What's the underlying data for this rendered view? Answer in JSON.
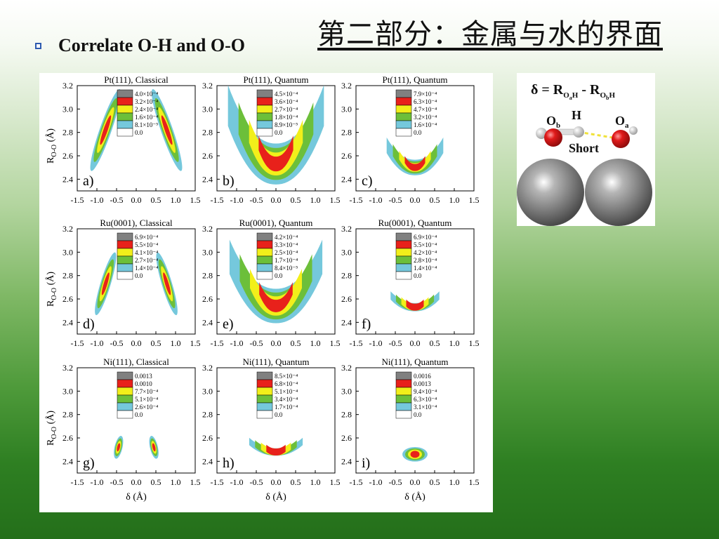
{
  "slide": {
    "title": "第二部分：金属与水的界面",
    "bullet": "Correlate O-H and O-O"
  },
  "colors": {
    "bullet": "#2e5bb0",
    "level5": "#808080",
    "level4": "#e8211b",
    "level3": "#f2ef1a",
    "level2": "#6cbf3a",
    "level1": "#75c8dc",
    "level0": "#ffffff"
  },
  "axes": {
    "x_label": "δ (Å)",
    "y_label": "R",
    "y_label_sub": "O-O",
    "y_label_unit": " (Å)",
    "x_ticks": [
      "-1.5",
      "-1.0",
      "-0.5",
      "0.0",
      "0.5",
      "1.0",
      "1.5"
    ],
    "y_ticks": [
      "3.2",
      "3.0",
      "2.8",
      "2.6",
      "2.4"
    ],
    "x_range": [
      -1.5,
      1.5
    ],
    "y_range": [
      2.3,
      3.2
    ]
  },
  "panels": [
    {
      "letter": "a)",
      "title": "Pt(111), Classical",
      "legend": [
        "4.0×10⁻⁴",
        "3.2×10⁻⁴",
        "2.4×10⁻⁴",
        "1.6×10⁻⁴",
        "8.1×10⁻⁵",
        "0.0"
      ],
      "shape": "split",
      "center": [
        0.78,
        2.82
      ],
      "size": [
        0.15,
        0.37
      ],
      "tilt": 1.6,
      "sag": 0
    },
    {
      "letter": "b)",
      "title": "Pt(111), Quantum",
      "legend": [
        "4.5×10⁻⁴",
        "3.6×10⁻⁴",
        "2.7×10⁻⁴",
        "1.8×10⁻⁴",
        "8.9×10⁻⁵",
        "0.0"
      ],
      "shape": "arc",
      "center": [
        0.0,
        2.53
      ],
      "size": [
        1.22,
        0.5
      ],
      "tilt": 0,
      "sag": 0
    },
    {
      "letter": "c)",
      "title": "Pt(111), Quantum",
      "legend": [
        "7.9×10⁻⁴",
        "6.3×10⁻⁴",
        "4.7×10⁻⁴",
        "3.2×10⁻⁴",
        "1.6×10⁻⁴",
        "0.0"
      ],
      "shape": "arc",
      "center": [
        0.0,
        2.5
      ],
      "size": [
        0.72,
        0.19
      ],
      "tilt": 0,
      "sag": 0
    },
    {
      "letter": "d)",
      "title": "Ru(0001), Classical",
      "legend": [
        "6.9×10⁻⁴",
        "5.5×10⁻⁴",
        "4.1×10⁻⁴",
        "2.7×10⁻⁴",
        "1.4×10⁻⁴",
        "0.0"
      ],
      "shape": "split",
      "center": [
        0.78,
        2.73
      ],
      "size": [
        0.13,
        0.28
      ],
      "tilt": 1.4,
      "sag": 0
    },
    {
      "letter": "e)",
      "title": "Ru(0001), Quantum",
      "legend": [
        "4.2×10⁻⁴",
        "3.3×10⁻⁴",
        "2.5×10⁻⁴",
        "1.7×10⁻⁴",
        "8.4×10⁻⁵",
        "0.0"
      ],
      "shape": "arc",
      "center": [
        0.0,
        2.54
      ],
      "size": [
        1.18,
        0.42
      ],
      "tilt": 0,
      "sag": 0
    },
    {
      "letter": "f)",
      "title": "Ru(0001), Quantum",
      "legend": [
        "6.9×10⁻⁴",
        "5.5×10⁻⁴",
        "4.2×10⁻⁴",
        "2.8×10⁻⁴",
        "1.4×10⁻⁴",
        "0.0"
      ],
      "shape": "arc",
      "center": [
        0.0,
        2.53
      ],
      "size": [
        0.62,
        0.1
      ],
      "tilt": 0,
      "sag": 0
    },
    {
      "letter": "g)",
      "title": "Ni(111), Classical",
      "legend": [
        "0.0013",
        "0.0010",
        "7.7×10⁻⁴",
        "5.1×10⁻⁴",
        "2.6×10⁻⁴",
        "0.0"
      ],
      "shape": "split",
      "center": [
        0.45,
        2.52
      ],
      "size": [
        0.1,
        0.1
      ],
      "tilt": 1.1,
      "sag": 0
    },
    {
      "letter": "h)",
      "title": "Ni(111), Quantum",
      "legend": [
        "8.5×10⁻⁴",
        "6.8×10⁻⁴",
        "5.1×10⁻⁴",
        "3.4×10⁻⁴",
        "1.7×10⁻⁴",
        "0.0"
      ],
      "shape": "arc",
      "center": [
        0.0,
        2.48
      ],
      "size": [
        0.68,
        0.09
      ],
      "tilt": 0,
      "sag": 0
    },
    {
      "letter": "i)",
      "title": "Ni(111), Quantum",
      "legend": [
        "0.0016",
        "0.0013",
        "9.4×10⁻⁴",
        "6.3×10⁻⁴",
        "3.1×10⁻⁴",
        "0.0"
      ],
      "shape": "blob",
      "center": [
        0.0,
        2.46
      ],
      "size": [
        0.32,
        0.05
      ],
      "tilt": 0,
      "sag": 0
    }
  ],
  "inset": {
    "formula": "δ = R",
    "formula_sub1": "O",
    "formula_subsub1": "a",
    "formula_h1": "H",
    "formula_sep": " - R",
    "formula_sub2": "O",
    "formula_subsub2": "b",
    "formula_h2": "H",
    "atom_ob": "O",
    "atom_ob_sub": "b",
    "atom_h": "H",
    "atom_oa": "O",
    "atom_oa_sub": "a",
    "bond_label": "Short",
    "colors": {
      "oxygen": "#d8141c",
      "hydrogen": "#d9d9d9",
      "metal": "#6f6f6f",
      "hbond": "#f0e23a"
    }
  }
}
